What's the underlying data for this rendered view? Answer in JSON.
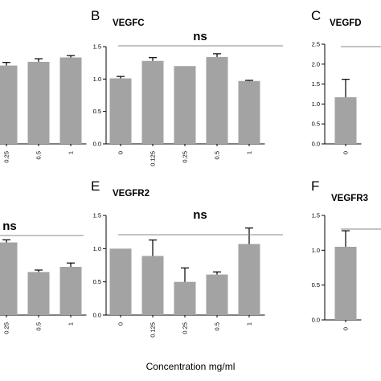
{
  "figure": {
    "shared_xlabel": "Concentration mg/ml"
  },
  "chart_data": [
    {
      "panel": "",
      "title": "",
      "significance": "",
      "type": "bar",
      "categories": [
        "0.25",
        "0.5",
        "1"
      ],
      "values": [
        1.26,
        1.32,
        1.39
      ],
      "errors": [
        0.05,
        0.05,
        0.03
      ],
      "yticks": []
    },
    {
      "panel": "B",
      "title": "VEGFC",
      "significance": "ns",
      "type": "bar",
      "categories": [
        "0",
        "0.125",
        "0.25",
        "0.5",
        "1"
      ],
      "values": [
        1.01,
        1.28,
        1.2,
        1.34,
        0.97
      ],
      "errors": [
        0.03,
        0.05,
        0.0,
        0.05,
        0.01
      ],
      "ylim": [
        0,
        1.5
      ],
      "yticks": [
        "0.0",
        "0.5",
        "1.0",
        "1.5"
      ]
    },
    {
      "panel": "C",
      "title": "VEGFD",
      "significance": "",
      "type": "bar",
      "categories": [
        "0"
      ],
      "values": [
        1.17
      ],
      "errors": [
        0.45
      ],
      "ylim": [
        0,
        2.5
      ],
      "yticks": [
        "0.0",
        "0.5",
        "1.0",
        "1.5",
        "2.0",
        "2.5"
      ]
    },
    {
      "panel": "",
      "title": "",
      "significance": "ns",
      "type": "bar",
      "categories": [
        "0.25",
        "0.5",
        "1"
      ],
      "values": [
        1.13,
        0.67,
        0.75
      ],
      "errors": [
        0.04,
        0.03,
        0.06
      ],
      "yticks": []
    },
    {
      "panel": "E",
      "title": "VEGFR2",
      "significance": "ns",
      "type": "bar",
      "categories": [
        "0",
        "0.125",
        "0.25",
        "0.5",
        "1"
      ],
      "values": [
        1.0,
        0.89,
        0.5,
        0.61,
        1.07
      ],
      "errors": [
        0.0,
        0.24,
        0.21,
        0.04,
        0.24
      ],
      "ylim": [
        0,
        1.5
      ],
      "yticks": [
        "0.0",
        "0.5",
        "1.0",
        "1.5"
      ]
    },
    {
      "panel": "F",
      "title": "VEGFR3",
      "significance": "",
      "type": "bar",
      "categories": [
        "0"
      ],
      "values": [
        1.05
      ],
      "errors": [
        0.23
      ],
      "ylim": [
        0,
        1.5
      ],
      "yticks": [
        "0.0",
        "0.5",
        "1.0",
        "1.5"
      ]
    }
  ],
  "colors": {
    "bar": "#a3a3a3",
    "axis": "#000000",
    "sig_line": "#888888"
  }
}
